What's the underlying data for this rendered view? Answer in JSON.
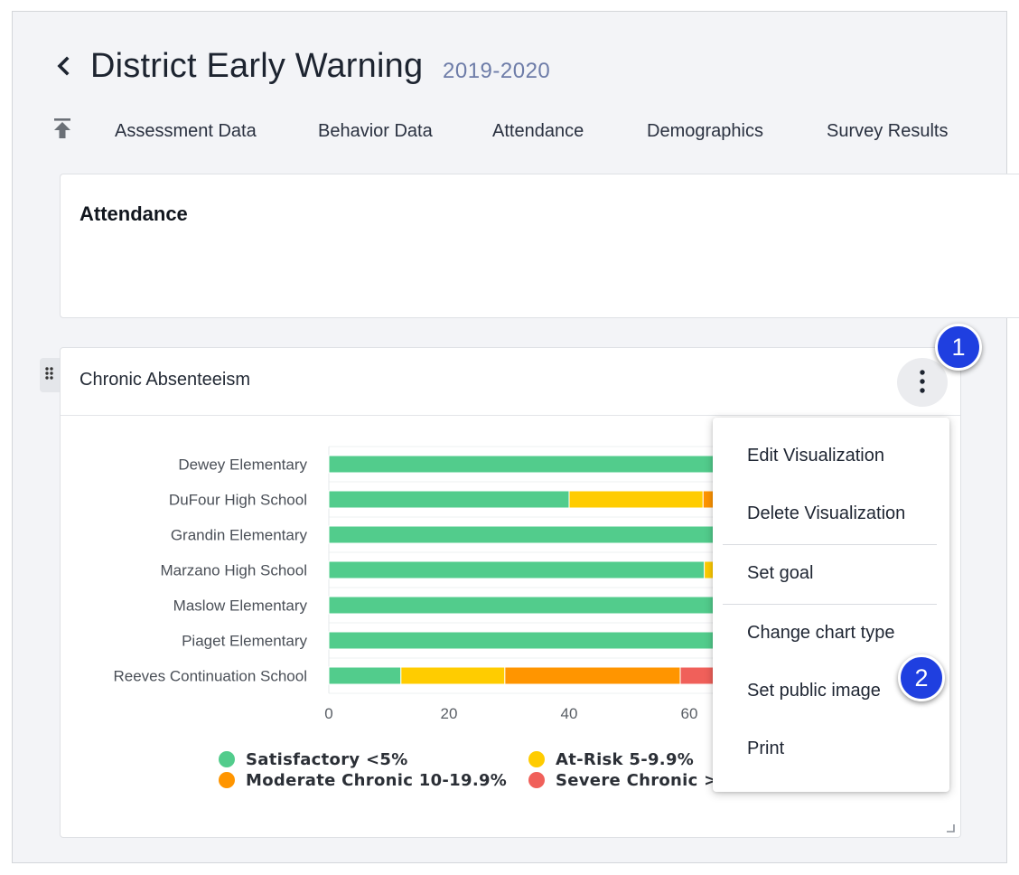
{
  "header": {
    "title": "District Early Warning",
    "year": "2019-2020"
  },
  "tabs": [
    {
      "label": "Assessment Data"
    },
    {
      "label": "Behavior Data"
    },
    {
      "label": "Attendance"
    },
    {
      "label": "Demographics"
    },
    {
      "label": "Survey Results"
    }
  ],
  "section": {
    "title": "Attendance"
  },
  "widget": {
    "title": "Chronic Absenteeism"
  },
  "menu": {
    "items": [
      {
        "label": "Edit Visualization"
      },
      {
        "label": "Delete Visualization"
      },
      {
        "label": "Set goal"
      },
      {
        "label": "Change chart type"
      },
      {
        "label": "Set public image"
      },
      {
        "label": "Print"
      }
    ]
  },
  "callouts": [
    "1",
    "2"
  ],
  "legend": [
    {
      "label": "Satisfactory <5%",
      "color": "#52cc8c"
    },
    {
      "label": "At-Risk 5-9.9%",
      "color": "#ffcc00"
    },
    {
      "label": "Moderate Chronic 10-19.9%",
      "color": "#ff9500"
    },
    {
      "label": "Severe Chronic >=",
      "color": "#f0605a"
    }
  ],
  "chart_data": {
    "type": "bar",
    "orientation": "horizontal",
    "stacked": true,
    "categories": [
      "Dewey Elementary",
      "DuFour High School",
      "Grandin Elementary",
      "Marzano High School",
      "Maslow Elementary",
      "Piaget Elementary",
      "Reeves Continuation School"
    ],
    "x_ticks": [
      "0",
      "20",
      "40",
      "60"
    ],
    "xlim": [
      0,
      64
    ],
    "series": [
      {
        "name": "Satisfactory <5%",
        "color": "#52cc8c",
        "values": [
          64,
          40,
          64,
          62.5,
          64,
          64,
          12
        ]
      },
      {
        "name": "At-Risk 5-9.9%",
        "color": "#ffcc00",
        "values": [
          0,
          22.3,
          0,
          1.5,
          0,
          0,
          17.3
        ]
      },
      {
        "name": "Moderate Chronic 10-19.9%",
        "color": "#ff9500",
        "values": [
          0,
          1.7,
          0,
          0,
          0,
          0,
          29.2
        ]
      },
      {
        "name": "Severe Chronic >=",
        "color": "#f0605a",
        "values": [
          0,
          0,
          0,
          0,
          0,
          0,
          5.5
        ]
      }
    ]
  }
}
